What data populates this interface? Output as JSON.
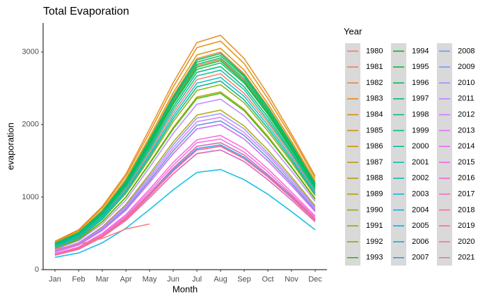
{
  "chart_data": {
    "type": "line",
    "title": "Total Evaporation",
    "x_label": "Month",
    "y_label": "evaporation",
    "legend_title": "Year",
    "legend": "right",
    "grid": false,
    "categories": [
      "Jan",
      "Feb",
      "Mar",
      "Apr",
      "May",
      "Jun",
      "Jul",
      "Aug",
      "Sep",
      "Oct",
      "Nov",
      "Dec"
    ],
    "ylim": [
      0,
      3400
    ],
    "yticks": [
      0,
      1000,
      2000,
      3000
    ],
    "series": [
      {
        "name": "1980",
        "color": "#F8766D",
        "values": [
          320,
          460,
          730,
          1110,
          1620,
          2160,
          2620,
          2700,
          2430,
          2030,
          1570,
          1080
        ]
      },
      {
        "name": "1981",
        "color": "#F37B59",
        "values": [
          350,
          490,
          780,
          1190,
          1740,
          2320,
          2810,
          2900,
          2610,
          2180,
          1680,
          1160
        ]
      },
      {
        "name": "1982",
        "color": "#ED8141",
        "values": [
          360,
          510,
          810,
          1230,
          1800,
          2400,
          2910,
          3000,
          2700,
          2250,
          1740,
          1200
        ]
      },
      {
        "name": "1983",
        "color": "#E7861B",
        "values": [
          390,
          550,
          870,
          1320,
          1940,
          2580,
          3130,
          3230,
          2910,
          2420,
          1870,
          1290
        ]
      },
      {
        "name": "1984",
        "color": "#E08B00",
        "values": [
          380,
          540,
          850,
          1290,
          1890,
          2520,
          3060,
          3150,
          2840,
          2360,
          1830,
          1260
        ]
      },
      {
        "name": "1985",
        "color": "#D89000",
        "values": [
          370,
          520,
          820,
          1250,
          1830,
          2440,
          2960,
          3050,
          2750,
          2290,
          1770,
          1220
        ]
      },
      {
        "name": "1986",
        "color": "#CF9400",
        "values": [
          360,
          510,
          800,
          1220,
          1790,
          2380,
          2890,
          2980,
          2680,
          2240,
          1730,
          1190
        ]
      },
      {
        "name": "1987",
        "color": "#C59900",
        "values": [
          340,
          480,
          760,
          1150,
          1680,
          2240,
          2720,
          2800,
          2520,
          2100,
          1620,
          1120
        ]
      },
      {
        "name": "1988",
        "color": "#BB9D00",
        "values": [
          310,
          440,
          700,
          1070,
          1560,
          2080,
          2520,
          2600,
          2340,
          1950,
          1510,
          1040
        ]
      },
      {
        "name": "1989",
        "color": "#AFA100",
        "values": [
          290,
          420,
          660,
          1000,
          1470,
          1960,
          2380,
          2450,
          2210,
          1840,
          1420,
          980
        ]
      },
      {
        "name": "1990",
        "color": "#A3A500",
        "values": [
          260,
          370,
          590,
          900,
          1320,
          1760,
          2130,
          2200,
          1980,
          1650,
          1280,
          880
        ]
      },
      {
        "name": "1991",
        "color": "#95A900",
        "values": [
          250,
          350,
          550,
          840,
          1230,
          1640,
          1990,
          2050,
          1850,
          1540,
          1190,
          820
        ]
      },
      {
        "name": "1992",
        "color": "#85AD00",
        "values": [
          310,
          430,
          690,
          1050,
          1530,
          2040,
          2470,
          2550,
          2300,
          1910,
          1480,
          1020
        ]
      },
      {
        "name": "1993",
        "color": "#39B600",
        "values": [
          290,
          410,
          660,
          1000,
          1460,
          1940,
          2360,
          2430,
          2190,
          1820,
          1410,
          970
        ]
      },
      {
        "name": "1994",
        "color": "#00B81F",
        "values": [
          350,
          490,
          780,
          1180,
          1730,
          2300,
          2790,
          2880,
          2590,
          2160,
          1670,
          1150
        ]
      },
      {
        "name": "1995",
        "color": "#00BA42",
        "values": [
          350,
          500,
          800,
          1210,
          1770,
          2360,
          2860,
          2950,
          2660,
          2210,
          1710,
          1180
        ]
      },
      {
        "name": "1996",
        "color": "#00BC59",
        "values": [
          340,
          480,
          770,
          1170,
          1710,
          2280,
          2760,
          2850,
          2570,
          2140,
          1650,
          1140
        ]
      },
      {
        "name": "1997",
        "color": "#00BD6D",
        "values": [
          350,
          500,
          790,
          1200,
          1750,
          2340,
          2830,
          2920,
          2630,
          2190,
          1690,
          1170
        ]
      },
      {
        "name": "1998",
        "color": "#00BF7D",
        "values": [
          360,
          510,
          800,
          1220,
          1790,
          2380,
          2890,
          2980,
          2680,
          2240,
          1730,
          1190
        ]
      },
      {
        "name": "1999",
        "color": "#00C08D",
        "values": [
          330,
          470,
          740,
          1130,
          1650,
          2200,
          2670,
          2750,
          2480,
          2060,
          1600,
          1100
        ]
      },
      {
        "name": "2000",
        "color": "#00C19C",
        "values": [
          340,
          480,
          760,
          1150,
          1680,
          2240,
          2720,
          2800,
          2520,
          2100,
          1620,
          1120
        ]
      },
      {
        "name": "2001",
        "color": "#00C0B8",
        "values": [
          310,
          440,
          700,
          1070,
          1560,
          2080,
          2520,
          2600,
          2340,
          1950,
          1510,
          1040
        ]
      },
      {
        "name": "2002",
        "color": "#00BFC4",
        "values": [
          320,
          450,
          720,
          1090,
          1590,
          2120,
          2570,
          2650,
          2390,
          1990,
          1540,
          1060
        ]
      },
      {
        "name": "2003",
        "color": "#00B8E5",
        "values": [
          170,
          230,
          370,
          570,
          830,
          1100,
          1340,
          1380,
          1240,
          1040,
          800,
          550
        ]
      },
      {
        "name": "2004",
        "color": "#00B4EF",
        "values": [
          200,
          290,
          460,
          700,
          1020,
          1360,
          1650,
          1700,
          1530,
          1280,
          990,
          680
        ]
      },
      {
        "name": "2005",
        "color": "#00B0F6",
        "values": [
          210,
          300,
          470,
          720,
          1050,
          1400,
          1700,
          1750,
          1580,
          1310,
          1020,
          700
        ]
      },
      {
        "name": "2006",
        "color": "#00ABFD",
        "values": [
          200,
          280,
          450,
          680,
          990,
          1320,
          1600,
          1650,
          1490,
          1240,
          960,
          660
        ]
      },
      {
        "name": "2007",
        "color": "#1AA3F8",
        "values": [
          210,
          290,
          460,
          710,
          1030,
          1380,
          1670,
          1720,
          1550,
          1290,
          1000,
          690
        ]
      },
      {
        "name": "2008",
        "color": "#619CFF",
        "values": [
          250,
          350,
          550,
          840,
          1230,
          1640,
          1990,
          2050,
          1850,
          1540,
          1190,
          820
        ]
      },
      {
        "name": "2009",
        "color": "#7997FF",
        "values": [
          240,
          340,
          540,
          820,
          1200,
          1600,
          1940,
          2000,
          1800,
          1500,
          1160,
          800
        ]
      },
      {
        "name": "2010",
        "color": "#9F8CFF",
        "values": [
          260,
          370,
          580,
          880,
          1290,
          1720,
          2090,
          2150,
          1940,
          1610,
          1250,
          860
        ]
      },
      {
        "name": "2011",
        "color": "#BB83FF",
        "values": [
          280,
          400,
          630,
          960,
          1410,
          1880,
          2280,
          2350,
          2120,
          1760,
          1360,
          940
        ]
      },
      {
        "name": "2012",
        "color": "#D078FF",
        "values": [
          250,
          360,
          570,
          860,
          1260,
          1680,
          2040,
          2100,
          1890,
          1580,
          1220,
          840
        ]
      },
      {
        "name": "2013",
        "color": "#E06EF5",
        "values": [
          240,
          340,
          540,
          820,
          1200,
          1600,
          1940,
          2000,
          1800,
          1500,
          1160,
          800
        ]
      },
      {
        "name": "2014",
        "color": "#EC69EF",
        "values": [
          200,
          290,
          460,
          700,
          1020,
          1360,
          1650,
          1700,
          1530,
          1280,
          990,
          680
        ]
      },
      {
        "name": "2015",
        "color": "#F564E3",
        "values": [
          220,
          310,
          490,
          740,
          1080,
          1440,
          1750,
          1800,
          1620,
          1350,
          1040,
          720
        ]
      },
      {
        "name": "2016",
        "color": "#FB61D7",
        "values": [
          220,
          310,
          500,
          760,
          1110,
          1480,
          1790,
          1850,
          1670,
          1390,
          1070,
          740
        ]
      },
      {
        "name": "2017",
        "color": "#FF62C9",
        "values": [
          200,
          290,
          460,
          700,
          1020,
          1360,
          1650,
          1700,
          1530,
          1280,
          990,
          680
        ]
      },
      {
        "name": "2018",
        "color": "#FF64B0",
        "values": [
          200,
          280,
          450,
          680,
          990,
          1320,
          1600,
          1650,
          1490,
          1240,
          960,
          660
        ]
      },
      {
        "name": "2019",
        "color": "#FF689E",
        "values": [
          210,
          300,
          470,
          720,
          1050,
          1400,
          1700,
          1750,
          1580,
          1310,
          1020,
          700
        ]
      },
      {
        "name": "2020",
        "color": "#FD6C8A",
        "values": [
          200,
          290,
          460,
          700,
          1020,
          1360,
          1650,
          1700,
          1530,
          1280,
          990,
          680
        ]
      },
      {
        "name": "2021",
        "color": "#F8767D",
        "values": [
          280,
          350,
          430,
          560,
          630,
          null,
          null,
          null,
          null,
          null,
          null,
          null
        ]
      }
    ]
  }
}
